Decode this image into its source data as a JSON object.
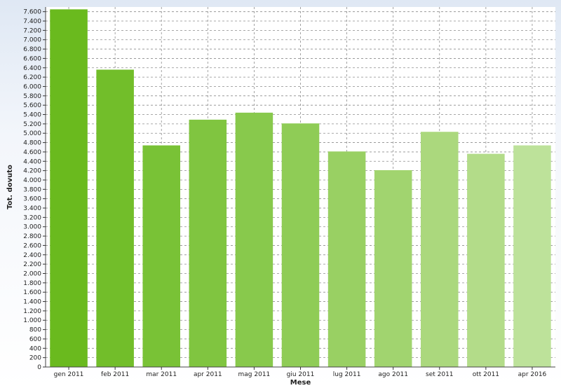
{
  "chart_data": {
    "type": "bar",
    "title": "",
    "xlabel": "Mese",
    "ylabel": "Tot. dovuto",
    "ylim": [
      0,
      7700
    ],
    "y_tick_step": 200,
    "grid": true,
    "legend": "none",
    "categories": [
      "gen 2011",
      "feb 2011",
      "mar 2011",
      "apr 2011",
      "mag 2011",
      "giu 2011",
      "lug 2011",
      "ago 2011",
      "set 2011",
      "ott 2011",
      "apr 2016"
    ],
    "values": [
      7650,
      6360,
      4740,
      5290,
      5440,
      5210,
      4610,
      4210,
      5030,
      4560,
      4740
    ],
    "colors": [
      "#6aba1e",
      "#72be2a",
      "#79c236",
      "#80c540",
      "#88c94c",
      "#8fcc56",
      "#99d063",
      "#a1d46f",
      "#abd87d",
      "#b3dc89",
      "#bde29a"
    ],
    "plot_background": "#ffffff",
    "grid_color": "#8c8c8c"
  }
}
